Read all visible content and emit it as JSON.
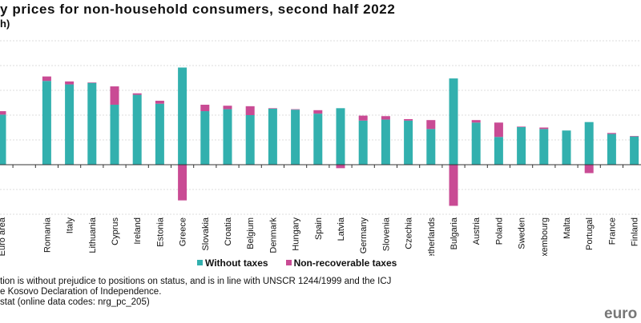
{
  "title": "y prices for non-household consumers, second half 2022",
  "subtitle": "h)",
  "chart_data": {
    "type": "bar",
    "stacked": true,
    "ylim": [
      -0.1,
      0.25
    ],
    "grid": true,
    "legend_position": "bottom",
    "categories": [
      "Euro area",
      "",
      "Romania",
      "Italy",
      "Lithuania",
      "Cyprus",
      "Ireland",
      "Estonia",
      "Greece",
      "Slovakia",
      "Croatia",
      "Belgium",
      "Denmark",
      "Hungary",
      "Spain",
      "Latvia",
      "Germany",
      "Slovenia",
      "Czechia",
      "Netherlands",
      "Bulgaria",
      "Austria",
      "Poland",
      "Sweden",
      "Luxembourg",
      "Malta",
      "Portugal",
      "France",
      "Finland"
    ],
    "series": [
      {
        "name": "Without taxes",
        "color": "#32b0ae",
        "values": [
          0.101,
          null,
          0.169,
          0.162,
          0.165,
          0.121,
          0.141,
          0.123,
          0.196,
          0.108,
          0.112,
          0.1,
          0.113,
          0.111,
          0.103,
          0.114,
          0.089,
          0.091,
          0.089,
          0.072,
          0.174,
          0.085,
          0.056,
          0.076,
          0.072,
          0.069,
          0.086,
          0.062,
          0.057
        ]
      },
      {
        "name": "Non-recoverable taxes",
        "color": "#c94b94",
        "values": [
          0.007,
          null,
          0.009,
          0.006,
          0.001,
          0.037,
          0.003,
          0.006,
          -0.072,
          0.013,
          0.007,
          0.018,
          0.001,
          0.001,
          0.007,
          -0.007,
          0.01,
          0.007,
          0.003,
          0.018,
          -0.083,
          0.005,
          0.029,
          0.001,
          0.003,
          0.0,
          -0.017,
          0.002,
          0.001
        ]
      }
    ]
  },
  "footnotes": [
    "tion is without prejudice to positions on status, and is in line with UNSCR 1244/1999 and the ICJ",
    "e Kosovo Declaration of Independence.",
    "stat (online data codes: nrg_pc_205)"
  ],
  "logo": "euro"
}
